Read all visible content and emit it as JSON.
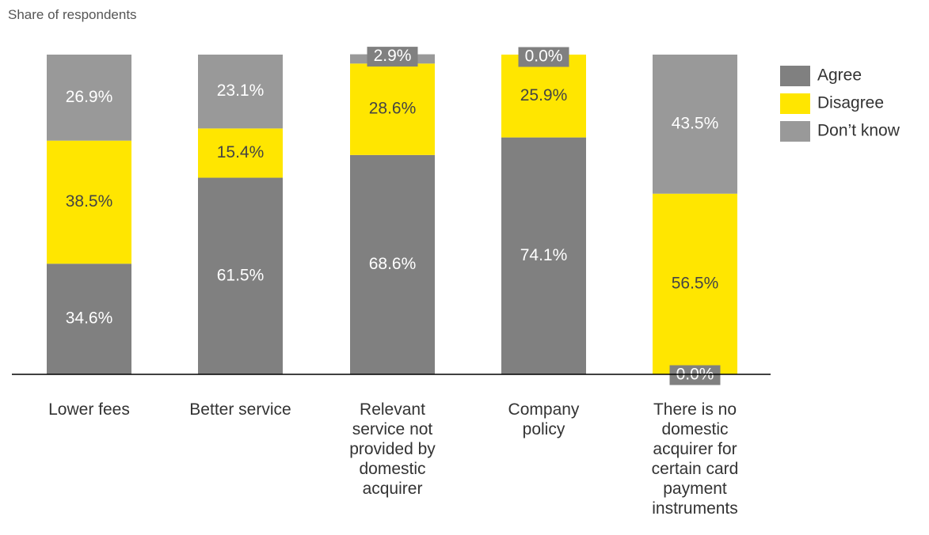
{
  "chart_data": {
    "type": "bar",
    "stacked": true,
    "title": "",
    "ylabel": "Share of respondents",
    "xlabel": "",
    "ylim": [
      0,
      100
    ],
    "categories": [
      [
        "Lower fees"
      ],
      [
        "Better service"
      ],
      [
        "Relevant",
        "service not",
        "provided by",
        "domestic",
        "acquirer"
      ],
      [
        "Company",
        "policy"
      ],
      [
        "There is no",
        "domestic",
        "acquirer for",
        "certain card",
        "payment",
        "instruments"
      ]
    ],
    "series": [
      {
        "name": "Agree",
        "color": "#808080",
        "values": [
          34.6,
          61.5,
          68.6,
          74.1,
          0.0
        ]
      },
      {
        "name": "Disagree",
        "color": "#FFE600",
        "values": [
          38.5,
          15.4,
          28.6,
          25.9,
          56.5
        ]
      },
      {
        "name": "Don’t know",
        "color": "#999999",
        "values": [
          26.9,
          23.1,
          2.9,
          0.0,
          43.5
        ]
      }
    ],
    "value_format": "{v}%",
    "legend_position": "right",
    "grid": false
  }
}
